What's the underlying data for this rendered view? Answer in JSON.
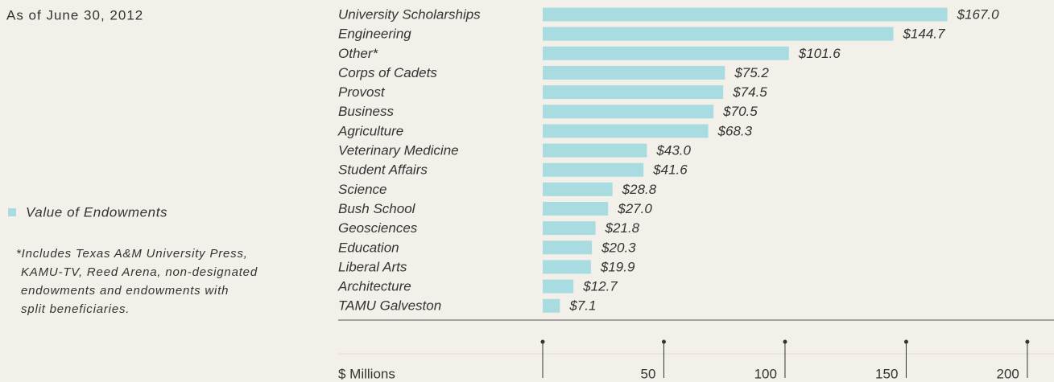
{
  "chart_data": {
    "type": "bar",
    "subtitle": "As of June 30, 2012",
    "categories": [
      "University Scholarships",
      "Engineering",
      "Other*",
      "Corps of Cadets",
      "Provost",
      "Business",
      "Agriculture",
      "Veterinary Medicine",
      "Student Affairs",
      "Science",
      "Bush School",
      "Geosciences",
      "Education",
      "Liberal Arts",
      "Architecture",
      "TAMU Galveston"
    ],
    "series": [
      {
        "name": "Value of Endowments",
        "color": "#a8dce1",
        "values": [
          167.0,
          144.7,
          101.6,
          75.2,
          74.5,
          70.5,
          68.3,
          43.0,
          41.6,
          28.8,
          27.0,
          21.8,
          20.3,
          19.9,
          12.7,
          7.1
        ],
        "value_labels": [
          "$167.0",
          "$144.7",
          "$101.6",
          "$75.2",
          "$74.5",
          "$70.5",
          "$68.3",
          "$43.0",
          "$41.6",
          "$28.8",
          "$27.0",
          "$21.8",
          "$20.3",
          "$19.9",
          "$12.7",
          "$7.1"
        ]
      }
    ],
    "xlabel": "$ Millions",
    "xlim": [
      0,
      210
    ],
    "xticks": [
      50,
      100,
      150,
      200
    ],
    "footnote": [
      "*Includes Texas A&M University Press,",
      "KAMU-TV, Reed Arena, non-designated",
      "endowments and endowments with",
      "split beneficiaries."
    ]
  }
}
